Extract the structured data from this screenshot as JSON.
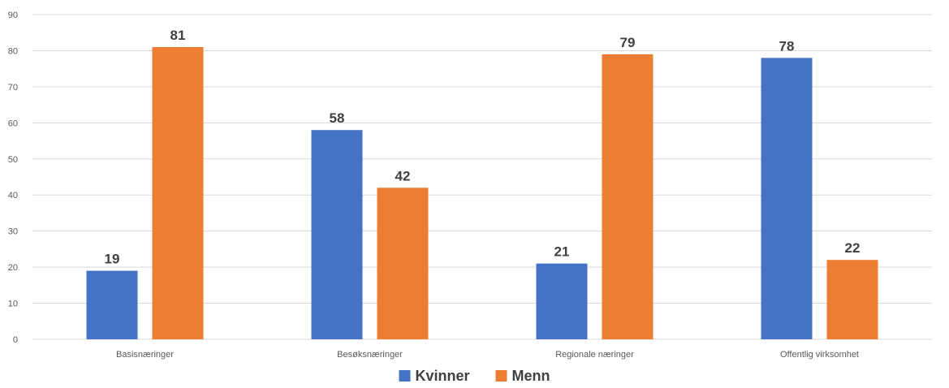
{
  "chart_data": {
    "type": "bar",
    "categories": [
      "Basisnæringer",
      "Besøksnæringer",
      "Regionale næringer",
      "Offentlig virksomhet"
    ],
    "series": [
      {
        "name": "Kvinner",
        "values": [
          19,
          58,
          21,
          78
        ],
        "color": "#4472c4"
      },
      {
        "name": "Menn",
        "values": [
          81,
          42,
          79,
          22
        ],
        "color": "#ed7d31"
      }
    ],
    "data_labels": [
      [
        "19",
        "58",
        "21",
        "78"
      ],
      [
        "81",
        "42",
        "79",
        "22"
      ]
    ],
    "ylim": [
      0,
      90
    ],
    "yticks": [
      0,
      10,
      20,
      30,
      40,
      50,
      60,
      70,
      80,
      90
    ],
    "ytick_labels": [
      "0",
      "10",
      "20",
      "30",
      "40",
      "50",
      "60",
      "70",
      "80",
      "90"
    ],
    "grid": true,
    "legend": "bottom-center",
    "title": "",
    "xlabel": "",
    "ylabel": ""
  }
}
